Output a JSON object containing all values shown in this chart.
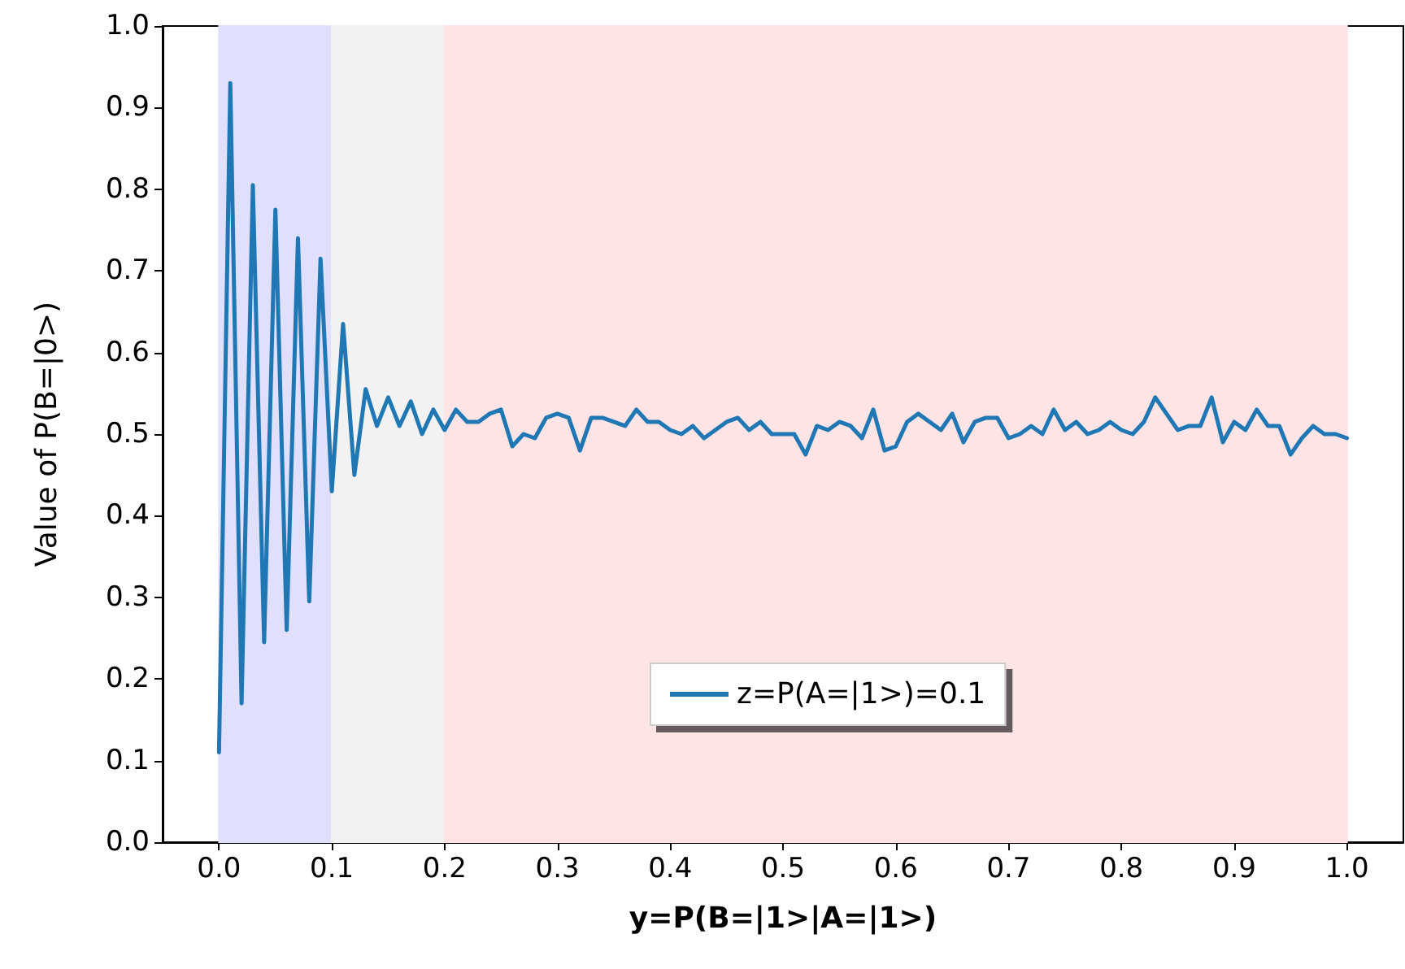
{
  "chart_data": {
    "type": "line",
    "xlabel": "y=P(B=|1>|A=|1>)",
    "ylabel": "Value of P(B=|0>)",
    "x": [
      0,
      0.01,
      0.02,
      0.03,
      0.04,
      0.05,
      0.06,
      0.07,
      0.08,
      0.09,
      0.1,
      0.11,
      0.12,
      0.13,
      0.14,
      0.15,
      0.16,
      0.17,
      0.18,
      0.19,
      0.2,
      0.21,
      0.22,
      0.23,
      0.24,
      0.25,
      0.26,
      0.27,
      0.28,
      0.29,
      0.3,
      0.31,
      0.32,
      0.33,
      0.34,
      0.35,
      0.36,
      0.37,
      0.38,
      0.39,
      0.4,
      0.41,
      0.42,
      0.43,
      0.44,
      0.45,
      0.46,
      0.47,
      0.48,
      0.49,
      0.5,
      0.51,
      0.52,
      0.53,
      0.54,
      0.55,
      0.56,
      0.57,
      0.58,
      0.59,
      0.6,
      0.61,
      0.62,
      0.63,
      0.64,
      0.65,
      0.66,
      0.67,
      0.68,
      0.69,
      0.7,
      0.71,
      0.72,
      0.73,
      0.74,
      0.75,
      0.76,
      0.77,
      0.78,
      0.79,
      0.8,
      0.81,
      0.82,
      0.83,
      0.84,
      0.85,
      0.86,
      0.87,
      0.88,
      0.89,
      0.9,
      0.91,
      0.92,
      0.93,
      0.94,
      0.95,
      0.96,
      0.97,
      0.98,
      0.99,
      1.0
    ],
    "series": [
      {
        "name": "z=P(A=|1>)=0.1",
        "color": "#1f77b4",
        "values": [
          0.11,
          0.93,
          0.17,
          0.805,
          0.245,
          0.775,
          0.26,
          0.74,
          0.295,
          0.715,
          0.43,
          0.635,
          0.45,
          0.555,
          0.51,
          0.545,
          0.51,
          0.54,
          0.5,
          0.53,
          0.505,
          0.53,
          0.515,
          0.515,
          0.525,
          0.53,
          0.485,
          0.5,
          0.495,
          0.52,
          0.525,
          0.52,
          0.48,
          0.52,
          0.52,
          0.515,
          0.51,
          0.53,
          0.515,
          0.515,
          0.505,
          0.5,
          0.51,
          0.495,
          0.505,
          0.515,
          0.52,
          0.505,
          0.515,
          0.5,
          0.5,
          0.5,
          0.475,
          0.51,
          0.505,
          0.515,
          0.51,
          0.495,
          0.53,
          0.48,
          0.485,
          0.515,
          0.525,
          0.515,
          0.505,
          0.525,
          0.49,
          0.515,
          0.52,
          0.52,
          0.495,
          0.5,
          0.51,
          0.5,
          0.53,
          0.505,
          0.515,
          0.5,
          0.505,
          0.515,
          0.505,
          0.5,
          0.515,
          0.545,
          0.525,
          0.505,
          0.51,
          0.51,
          0.545,
          0.49,
          0.515,
          0.505,
          0.53,
          0.51,
          0.51,
          0.475,
          0.495,
          0.51,
          0.5,
          0.5,
          0.495
        ]
      }
    ],
    "xlim": [
      -0.05,
      1.05
    ],
    "xticks": [
      {
        "value": 0,
        "label": "0.0"
      },
      0.1,
      0.2,
      0.3,
      0.4,
      0.5,
      0.6,
      0.7,
      0.8,
      0.9,
      {
        "value": 1,
        "label": "1.0"
      }
    ],
    "ylim": [
      0,
      1
    ],
    "yticks": [
      {
        "value": 0,
        "label": "0.0"
      },
      0.1,
      0.2,
      0.3,
      0.4,
      0.5,
      0.6,
      0.7,
      0.8,
      0.9,
      {
        "value": 1,
        "label": "1.0"
      }
    ],
    "bands": [
      {
        "axis": "x",
        "from": 0,
        "to": 0.1,
        "color": "#e0e0fd"
      },
      {
        "axis": "x",
        "from": 0.1,
        "to": 0.2,
        "color": "#f2f2f2"
      },
      {
        "axis": "x",
        "from": 0.2,
        "to": 1.0,
        "color": "#ffe4e6"
      }
    ],
    "grid": false,
    "legend": "bottom",
    "marker": "none",
    "line_style": "solid"
  }
}
